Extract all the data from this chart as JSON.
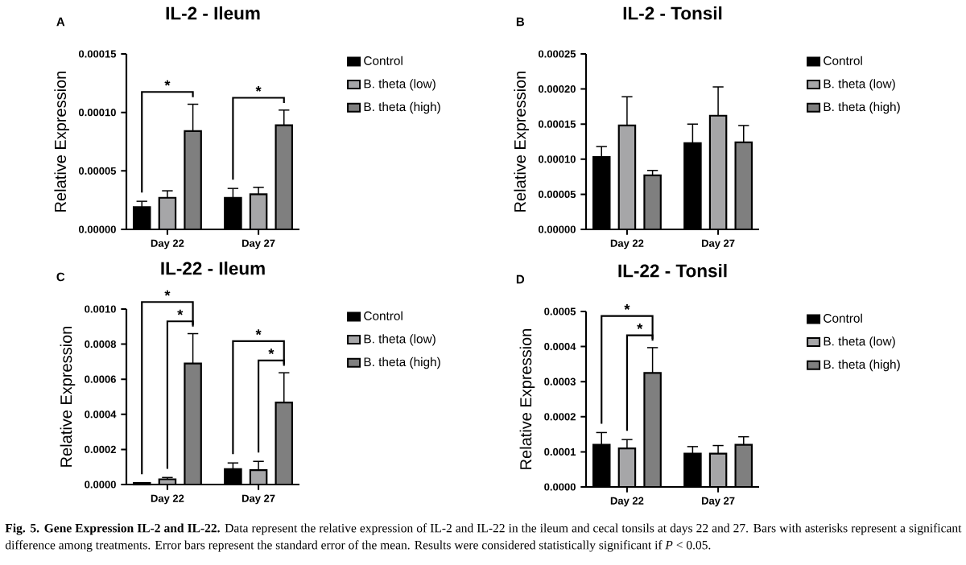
{
  "chart_data": [
    {
      "type": "bar",
      "title": "IL-2 - Ileum",
      "ylabel": "Relative Expression",
      "categories": [
        "Day 22",
        "Day 27"
      ],
      "series": [
        {
          "name": "Control",
          "color": "#000000",
          "values": [
            1.9e-05,
            2.7e-05
          ],
          "errors": [
            5e-06,
            8e-06
          ]
        },
        {
          "name": "B. theta (low)",
          "color": "#a6a6a8",
          "values": [
            2.7e-05,
            3e-05
          ],
          "errors": [
            6e-06,
            6e-06
          ]
        },
        {
          "name": "B. theta (high)",
          "color": "#7f7f7f",
          "values": [
            8.4e-05,
            8.9e-05
          ],
          "errors": [
            2.3e-05,
            1.3e-05
          ]
        }
      ],
      "ylim": [
        0,
        0.00015
      ],
      "yticks": [
        {
          "value": 0,
          "label": "0.00000"
        },
        {
          "value": 5e-05,
          "label": "0.00005"
        },
        {
          "value": 0.0001,
          "label": "0.00010"
        },
        {
          "value": 0.00015,
          "label": "0.00015"
        }
      ],
      "legend": "right",
      "annotations": [
        "A",
        "*",
        "*"
      ]
    },
    {
      "type": "bar",
      "title": "IL-2 - Tonsil",
      "ylabel": "Relative Expression",
      "categories": [
        "Day 22",
        "Day 27"
      ],
      "series": [
        {
          "name": "Control",
          "color": "#000000",
          "values": [
            0.000103,
            0.000123
          ],
          "errors": [
            1.5e-05,
            2.7e-05
          ]
        },
        {
          "name": "B. theta (low)",
          "color": "#a6a6a8",
          "values": [
            0.000148,
            0.000162
          ],
          "errors": [
            4.1e-05,
            4.1e-05
          ]
        },
        {
          "name": "B. theta (high)",
          "color": "#7f7f7f",
          "values": [
            7.7e-05,
            0.000124
          ],
          "errors": [
            7e-06,
            2.4e-05
          ]
        }
      ],
      "ylim": [
        0,
        0.00025
      ],
      "yticks": [
        {
          "value": 0,
          "label": "0.00000"
        },
        {
          "value": 5e-05,
          "label": "0.00005"
        },
        {
          "value": 0.0001,
          "label": "0.00010"
        },
        {
          "value": 0.00015,
          "label": "0.00015"
        },
        {
          "value": 0.0002,
          "label": "0.00020"
        },
        {
          "value": 0.00025,
          "label": "0.00025"
        }
      ],
      "legend": "right",
      "annotations": [
        "B"
      ]
    },
    {
      "type": "bar",
      "title": "IL-22 - Ileum",
      "ylabel": "Relative Expression",
      "categories": [
        "Day 22",
        "Day 27"
      ],
      "series": [
        {
          "name": "Control",
          "color": "#000000",
          "values": [
            9e-06,
            8.8e-05
          ],
          "errors": [
            null,
            3.5e-05
          ]
        },
        {
          "name": "B. theta (low)",
          "color": "#a6a6a8",
          "values": [
            3e-05,
            8.2e-05
          ],
          "errors": [
            1e-05,
            5e-05
          ]
        },
        {
          "name": "B. theta (high)",
          "color": "#7f7f7f",
          "values": [
            0.00069,
            0.000467
          ],
          "errors": [
            0.00017,
            0.00017
          ]
        }
      ],
      "ylim": [
        0,
        0.001
      ],
      "yticks": [
        {
          "value": 0,
          "label": "0.0000"
        },
        {
          "value": 0.0002,
          "label": "0.0002"
        },
        {
          "value": 0.0004,
          "label": "0.0004"
        },
        {
          "value": 0.0006,
          "label": "0.0006"
        },
        {
          "value": 0.0008,
          "label": "0.0008"
        },
        {
          "value": 0.001,
          "label": "0.0010"
        }
      ],
      "legend": "right",
      "annotations": [
        "C",
        "*",
        "*",
        "*",
        "*"
      ]
    },
    {
      "type": "bar",
      "title": "IL-22 - Tonsil",
      "ylabel": "Relative Expression",
      "categories": [
        "Day 22",
        "Day 27"
      ],
      "series": [
        {
          "name": "Control",
          "color": "#000000",
          "values": [
            0.00012,
            9.5e-05
          ],
          "errors": [
            3.5e-05,
            2e-05
          ]
        },
        {
          "name": "B. theta (low)",
          "color": "#a6a6a8",
          "values": [
            0.00011,
            9.5e-05
          ],
          "errors": [
            2.5e-05,
            2.3e-05
          ]
        },
        {
          "name": "B. theta (high)",
          "color": "#7f7f7f",
          "values": [
            0.000325,
            0.00012
          ],
          "errors": [
            7.2e-05,
            2.3e-05
          ]
        }
      ],
      "ylim": [
        0,
        0.0005
      ],
      "yticks": [
        {
          "value": 0,
          "label": "0.0000"
        },
        {
          "value": 0.0001,
          "label": "0.0001"
        },
        {
          "value": 0.0002,
          "label": "0.0002"
        },
        {
          "value": 0.0003,
          "label": "0.0003"
        },
        {
          "value": 0.0004,
          "label": "0.0004"
        },
        {
          "value": 0.0005,
          "label": "0.0005"
        }
      ],
      "legend": "right",
      "annotations": [
        "D",
        "*",
        "*",
        "**Fig. 5. Gene Expression IL-2 and IL-22.** Data represent the relative expression of IL-2 and IL-22 in the ileum and cecal tonsils at days 22 and 27. Bars with asterisks represent a significant difference among treatments. Error bars represent the standard error of the mean. Results were considered statistically significant if *P* < 0.05."
      ]
    }
  ]
}
